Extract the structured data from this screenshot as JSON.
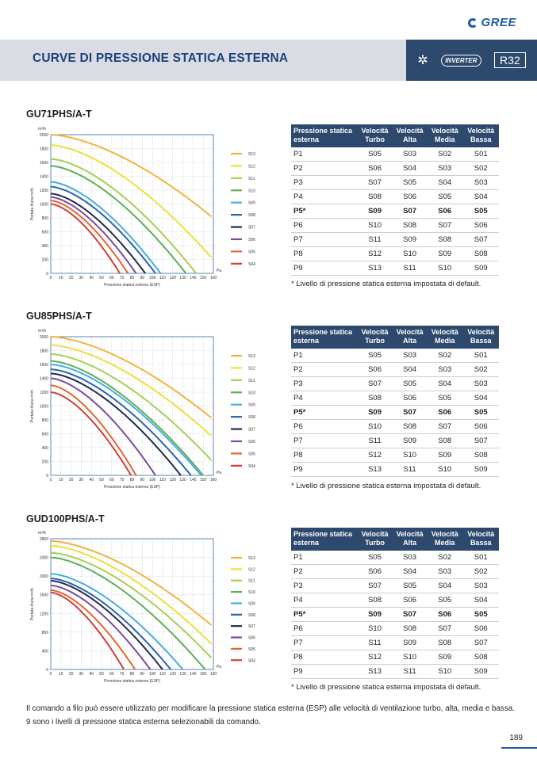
{
  "header": {
    "brand": "GREE",
    "title": "CURVE DI PRESSIONE STATICA ESTERNA",
    "badge_inverter": "INVERTER",
    "badge_refrigerant": "R32"
  },
  "sections": [
    {
      "model": "GU71PHS/A-T"
    },
    {
      "model": "GU85PHS/A-T"
    },
    {
      "model": "GUD100PHS/A-T"
    }
  ],
  "table": {
    "headers": [
      "Pressione statica esterna",
      "Velocità Turbo",
      "Velocità Alta",
      "Velocità Media",
      "Velocità Bassa"
    ],
    "rows": [
      [
        "P1",
        "S05",
        "S03",
        "S02",
        "S01"
      ],
      [
        "P2",
        "S06",
        "S04",
        "S03",
        "S02"
      ],
      [
        "P3",
        "S07",
        "S05",
        "S04",
        "S03"
      ],
      [
        "P4",
        "S08",
        "S06",
        "S05",
        "S04"
      ],
      [
        "P5*",
        "S09",
        "S07",
        "S06",
        "S05"
      ],
      [
        "P6",
        "S10",
        "S08",
        "S07",
        "S06"
      ],
      [
        "P7",
        "S11",
        "S09",
        "S08",
        "S07"
      ],
      [
        "P8",
        "S12",
        "S10",
        "S09",
        "S08"
      ],
      [
        "P9",
        "S13",
        "S11",
        "S10",
        "S09"
      ]
    ],
    "bold_row": 4,
    "note": "* Livello di pressione statica esterna impostata di default."
  },
  "footer": {
    "paragraph": "Il comando a filo può essere utilizzato per modificare la pressione statica esterna (ESP) alle velocità di ventilazione turbo, alta, media e bassa. 9 sono i livelli di pressione statica esterna selezionabili da comando.",
    "page_number": "189"
  },
  "chart_data": [
    {
      "type": "line",
      "xlabel": "Pressione statica esterna (ESP)",
      "ylabel": "Portata d'aria m³/h",
      "x_unit": "Pa",
      "y_unit": "m³/h",
      "xlim": [
        0,
        160
      ],
      "ylim": [
        0,
        2000
      ],
      "xticks": [
        0,
        10,
        20,
        30,
        40,
        50,
        60,
        70,
        80,
        90,
        100,
        110,
        120,
        130,
        140,
        150,
        160
      ],
      "yticks": [
        0,
        200,
        400,
        600,
        800,
        1000,
        1200,
        1400,
        1600,
        1800,
        2000
      ],
      "grid": true,
      "legend_position": "right",
      "series": [
        {
          "name": "S13",
          "color": "#f2b33d",
          "x0": 2000,
          "xend": 158,
          "yend": 820
        },
        {
          "name": "S12",
          "color": "#eedf3a",
          "x0": 1850,
          "xend": 158,
          "yend": 230
        },
        {
          "name": "S11",
          "color": "#a8cf52",
          "x0": 1650,
          "xend": 143,
          "yend": 0
        },
        {
          "name": "S10",
          "color": "#5cae5c",
          "x0": 1550,
          "xend": 133,
          "yend": 0
        },
        {
          "name": "S09",
          "color": "#48ade0",
          "x0": 1320,
          "xend": 108,
          "yend": 0
        },
        {
          "name": "S08",
          "color": "#2b64ad",
          "x0": 1250,
          "xend": 103,
          "yend": 0
        },
        {
          "name": "S07",
          "color": "#252a4d",
          "x0": 1150,
          "xend": 93,
          "yend": 0
        },
        {
          "name": "S06",
          "color": "#7b4c9f",
          "x0": 1100,
          "xend": 84,
          "yend": 0
        },
        {
          "name": "S05",
          "color": "#e8642d",
          "x0": 1050,
          "xend": 76,
          "yend": 0
        },
        {
          "name": "S04",
          "color": "#cf3f3a",
          "x0": 1000,
          "xend": 68,
          "yend": 0
        }
      ]
    },
    {
      "type": "line",
      "xlabel": "Pressione statica esterna (ESP)",
      "ylabel": "Portata d'aria m³/h",
      "x_unit": "Pa",
      "y_unit": "m³/h",
      "xlim": [
        0,
        160
      ],
      "ylim": [
        0,
        2000
      ],
      "xticks": [
        0,
        10,
        20,
        30,
        40,
        50,
        60,
        70,
        80,
        90,
        100,
        110,
        120,
        130,
        140,
        150,
        160
      ],
      "yticks": [
        0,
        200,
        400,
        600,
        800,
        1000,
        1200,
        1400,
        1600,
        1800,
        2000
      ],
      "grid": true,
      "legend_position": "right",
      "series": [
        {
          "name": "S13",
          "color": "#f2b33d",
          "x0": 2000,
          "xend": 158,
          "yend": 830
        },
        {
          "name": "S12",
          "color": "#eedf3a",
          "x0": 1880,
          "xend": 158,
          "yend": 570
        },
        {
          "name": "S11",
          "color": "#a8cf52",
          "x0": 1750,
          "xend": 158,
          "yend": 220
        },
        {
          "name": "S10",
          "color": "#5cae5c",
          "x0": 1650,
          "xend": 150,
          "yend": 0
        },
        {
          "name": "S09",
          "color": "#48ade0",
          "x0": 1600,
          "xend": 148,
          "yend": 0
        },
        {
          "name": "S08",
          "color": "#2b64ad",
          "x0": 1530,
          "xend": 138,
          "yend": 0
        },
        {
          "name": "S07",
          "color": "#252a4d",
          "x0": 1470,
          "xend": 128,
          "yend": 0
        },
        {
          "name": "S06",
          "color": "#7b4c9f",
          "x0": 1400,
          "xend": 103,
          "yend": 0
        },
        {
          "name": "S05",
          "color": "#e8642d",
          "x0": 1300,
          "xend": 84,
          "yend": 0
        },
        {
          "name": "S04",
          "color": "#cf3f3a",
          "x0": 1200,
          "xend": 79,
          "yend": 0
        }
      ]
    },
    {
      "type": "line",
      "xlabel": "Pressione statica esterna (ESP)",
      "ylabel": "Portata d'aria m³/h",
      "x_unit": "Pa",
      "y_unit": "m³/h",
      "xlim": [
        0,
        160
      ],
      "ylim": [
        0,
        2800
      ],
      "xticks": [
        0,
        10,
        20,
        30,
        40,
        50,
        60,
        70,
        80,
        90,
        100,
        110,
        120,
        130,
        140,
        150,
        160
      ],
      "yticks": [
        0,
        400,
        800,
        1200,
        1600,
        2000,
        2400,
        2800
      ],
      "grid": true,
      "legend_position": "right",
      "series": [
        {
          "name": "S13",
          "color": "#f2b33d",
          "x0": 2750,
          "xend": 158,
          "yend": 950
        },
        {
          "name": "S12",
          "color": "#eedf3a",
          "x0": 2650,
          "xend": 158,
          "yend": 550
        },
        {
          "name": "S11",
          "color": "#a8cf52",
          "x0": 2500,
          "xend": 158,
          "yend": 250
        },
        {
          "name": "S10",
          "color": "#5cae5c",
          "x0": 2400,
          "xend": 152,
          "yend": 0
        },
        {
          "name": "S09",
          "color": "#48ade0",
          "x0": 2050,
          "xend": 130,
          "yend": 0
        },
        {
          "name": "S08",
          "color": "#2b64ad",
          "x0": 1950,
          "xend": 118,
          "yend": 0
        },
        {
          "name": "S07",
          "color": "#252a4d",
          "x0": 1900,
          "xend": 110,
          "yend": 0
        },
        {
          "name": "S06",
          "color": "#7b4c9f",
          "x0": 1800,
          "xend": 98,
          "yend": 0
        },
        {
          "name": "S05",
          "color": "#e8642d",
          "x0": 1700,
          "xend": 83,
          "yend": 0
        },
        {
          "name": "S04",
          "color": "#cf3f3a",
          "x0": 1650,
          "xend": 72,
          "yend": 0
        }
      ]
    }
  ]
}
